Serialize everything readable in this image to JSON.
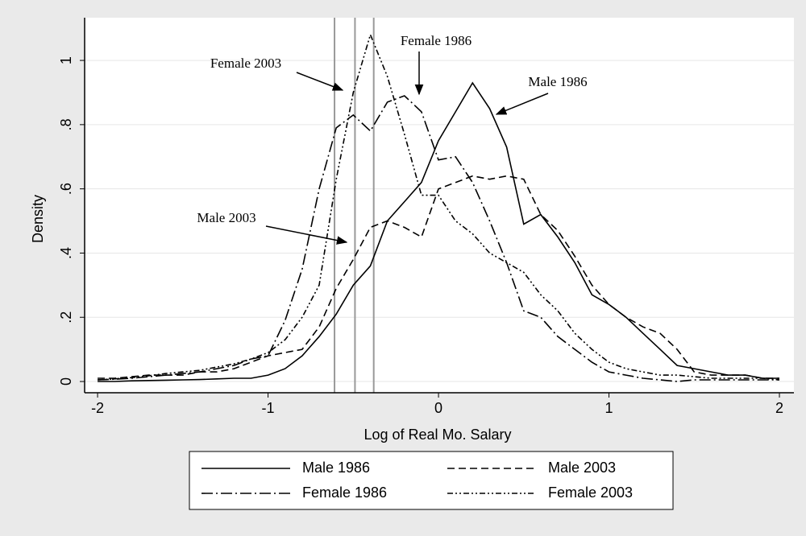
{
  "chart_data": {
    "type": "line",
    "xlabel": "Log of Real Mo. Salary",
    "ylabel": "Density",
    "x": [
      -2.0,
      -1.9,
      -1.8,
      -1.7,
      -1.6,
      -1.5,
      -1.4,
      -1.3,
      -1.2,
      -1.1,
      -1.0,
      -0.9,
      -0.8,
      -0.7,
      -0.6,
      -0.5,
      -0.4,
      -0.3,
      -0.2,
      -0.1,
      0.0,
      0.1,
      0.2,
      0.3,
      0.4,
      0.5,
      0.6,
      0.7,
      0.8,
      0.9,
      1.0,
      1.1,
      1.2,
      1.3,
      1.4,
      1.5,
      1.6,
      1.7,
      1.8,
      1.9,
      2.0
    ],
    "series": [
      {
        "name": "Male 1986",
        "color": "#000000",
        "dash": "solid",
        "values": [
          0.0,
          0.0,
          0.002,
          0.003,
          0.004,
          0.005,
          0.006,
          0.008,
          0.01,
          0.01,
          0.02,
          0.04,
          0.08,
          0.14,
          0.21,
          0.3,
          0.36,
          0.5,
          0.56,
          0.62,
          0.75,
          0.84,
          0.93,
          0.85,
          0.73,
          0.49,
          0.52,
          0.45,
          0.37,
          0.27,
          0.24,
          0.2,
          0.15,
          0.1,
          0.05,
          0.04,
          0.03,
          0.02,
          0.02,
          0.01,
          0.01
        ]
      },
      {
        "name": "Male 2003",
        "color": "#000000",
        "dash": "dash",
        "values": [
          0.01,
          0.01,
          0.015,
          0.02,
          0.02,
          0.02,
          0.03,
          0.03,
          0.04,
          0.06,
          0.08,
          0.09,
          0.1,
          0.17,
          0.29,
          0.38,
          0.48,
          0.5,
          0.48,
          0.45,
          0.6,
          0.62,
          0.64,
          0.63,
          0.64,
          0.63,
          0.52,
          0.47,
          0.39,
          0.3,
          0.24,
          0.2,
          0.17,
          0.15,
          0.1,
          0.03,
          0.02,
          0.02,
          0.02,
          0.01,
          0.01
        ]
      },
      {
        "name": "Female 1986",
        "color": "#000000",
        "dash": "dash-dot",
        "values": [
          0.005,
          0.007,
          0.01,
          0.015,
          0.02,
          0.025,
          0.03,
          0.04,
          0.05,
          0.07,
          0.08,
          0.19,
          0.35,
          0.6,
          0.79,
          0.83,
          0.78,
          0.87,
          0.89,
          0.84,
          0.69,
          0.7,
          0.62,
          0.5,
          0.37,
          0.22,
          0.2,
          0.14,
          0.1,
          0.06,
          0.03,
          0.02,
          0.01,
          0.005,
          0.0,
          0.005,
          0.005,
          0.005,
          0.005,
          0.005,
          0.005
        ]
      },
      {
        "name": "Female 2003",
        "color": "#000000",
        "dash": "dash-dot-dot",
        "values": [
          0.005,
          0.008,
          0.012,
          0.018,
          0.025,
          0.03,
          0.035,
          0.045,
          0.055,
          0.07,
          0.09,
          0.13,
          0.2,
          0.3,
          0.63,
          0.9,
          1.08,
          0.95,
          0.77,
          0.58,
          0.58,
          0.5,
          0.46,
          0.4,
          0.37,
          0.34,
          0.27,
          0.22,
          0.15,
          0.1,
          0.06,
          0.04,
          0.03,
          0.02,
          0.02,
          0.015,
          0.01,
          0.01,
          0.01,
          0.01,
          0.005
        ]
      }
    ],
    "vlines": [
      -0.61,
      -0.49,
      -0.38
    ],
    "vline_color": "#999999",
    "annotations": [
      "Female 2003",
      "Female 1986",
      "Male 1986",
      "Male 2003"
    ],
    "xlim": [
      -2.076,
      2.085
    ],
    "ylim": [
      -0.035,
      1.133
    ],
    "xticks": [
      -2,
      -1,
      0,
      1,
      2
    ],
    "yticks": [
      0,
      {
        "value": 0.2,
        "label": ".2"
      },
      {
        "value": 0.4,
        "label": ".4"
      },
      {
        "value": 0.6,
        "label": ".6"
      },
      {
        "value": 0.8,
        "label": ".8"
      },
      1
    ],
    "grid": true,
    "legend": "bottom"
  }
}
